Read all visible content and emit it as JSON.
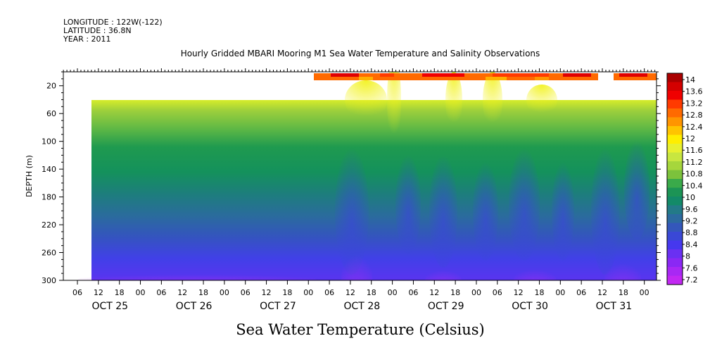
{
  "header": {
    "longitude": "LONGITUDE : 122W(-122)",
    "latitude": "LATITUDE : 36.8N",
    "year": "YEAR : 2011"
  },
  "chart_data": {
    "type": "heatmap",
    "title": "Hourly Gridded MBARI Mooring M1 Sea Water Temperature and Salinity Observations",
    "ylabel": "DEPTH (m)",
    "bottom_label": "Sea Water Temperature (Celsius)",
    "x_hour_ticks": [
      "06",
      "12",
      "18",
      "00",
      "06",
      "12",
      "18",
      "00",
      "06",
      "12",
      "18",
      "00",
      "06",
      "12",
      "18",
      "00",
      "06",
      "12",
      "18",
      "00",
      "06",
      "12",
      "18",
      "00",
      "06",
      "12",
      "18",
      "00"
    ],
    "x_day_labels": [
      "OCT 25",
      "OCT 26",
      "OCT 27",
      "OCT 28",
      "OCT 29",
      "OCT 30",
      "OCT 31"
    ],
    "y_ticks": [
      20,
      60,
      100,
      140,
      180,
      220,
      260,
      300
    ],
    "ylim": [
      0,
      300
    ],
    "y_reversed": true,
    "colorbar_ticks": [
      "14",
      "13.6",
      "13.2",
      "12.8",
      "12.4",
      "12",
      "11.6",
      "11.2",
      "10.8",
      "10.4",
      "10",
      "9.6",
      "9.2",
      "8.8",
      "8.4",
      "8",
      "7.6",
      "7.2"
    ],
    "colorbar_colors": [
      "#aa0000",
      "#d40000",
      "#f00000",
      "#ff3a00",
      "#ff6a00",
      "#ff9500",
      "#ffc400",
      "#ffee00",
      "#e8f030",
      "#c8e640",
      "#a6d63c",
      "#7cc23c",
      "#3aaa4a",
      "#1c9455",
      "#138a68",
      "#237a88",
      "#2c6aa0",
      "#3457bb",
      "#3a48d6",
      "#4638ee",
      "#6a30f2",
      "#8a28f4",
      "#a828f4",
      "#c228f2"
    ],
    "depth_profile": [
      {
        "depth": 40,
        "value": 11.2
      },
      {
        "depth": 60,
        "value": 10.6
      },
      {
        "depth": 80,
        "value": 10.2
      },
      {
        "depth": 100,
        "value": 9.9
      },
      {
        "depth": 120,
        "value": 9.7
      },
      {
        "depth": 140,
        "value": 9.6
      },
      {
        "depth": 160,
        "value": 9.4
      },
      {
        "depth": 180,
        "value": 9.1
      },
      {
        "depth": 200,
        "value": 8.9
      },
      {
        "depth": 220,
        "value": 8.6
      },
      {
        "depth": 240,
        "value": 8.3
      },
      {
        "depth": 260,
        "value": 8.1
      },
      {
        "depth": 280,
        "value": 7.9
      },
      {
        "depth": 300,
        "value": 7.7
      }
    ],
    "surface_value": 12.8
  }
}
